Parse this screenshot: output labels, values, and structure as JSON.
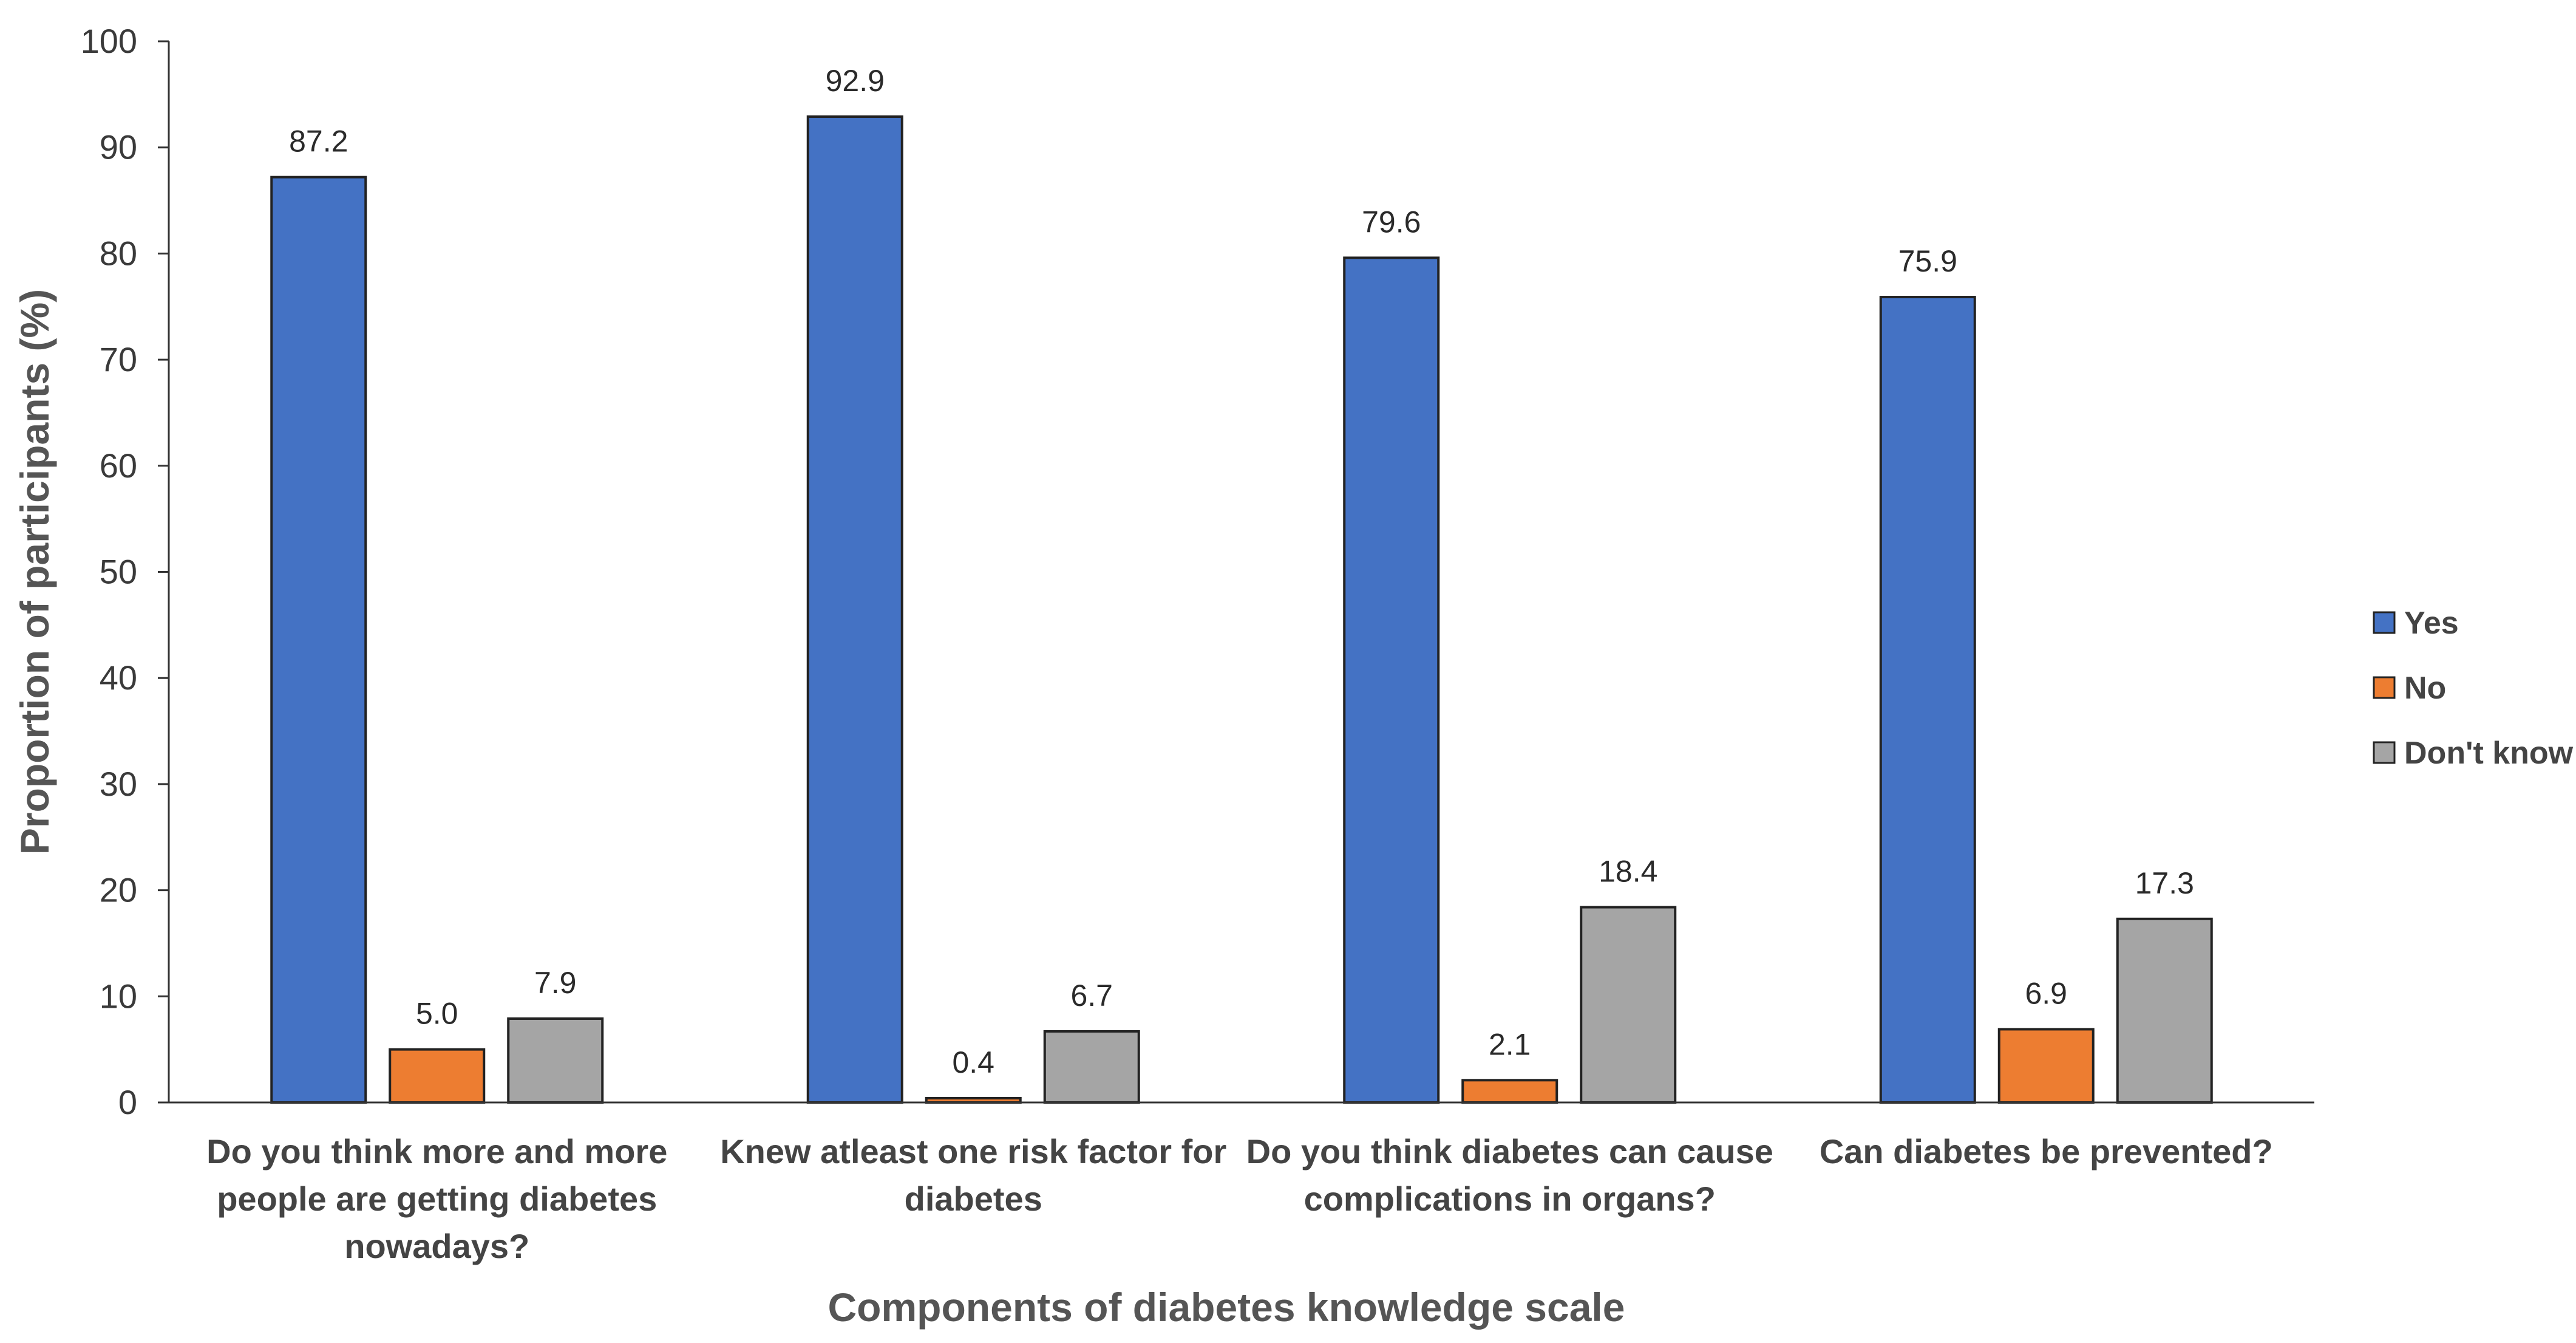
{
  "chart_data": {
    "type": "bar",
    "title": "",
    "xlabel": "Components of diabetes knowledge scale",
    "ylabel": "Proportion of participants (%)",
    "ylim": [
      0,
      100
    ],
    "yticks": [
      0,
      10,
      20,
      30,
      40,
      50,
      60,
      70,
      80,
      90,
      100
    ],
    "grid": false,
    "legend_position": "right",
    "categories": [
      [
        "Do you think more and more",
        "people are getting diabetes",
        "nowadays?"
      ],
      [
        "Knew atleast one risk factor for",
        "diabetes"
      ],
      [
        "Do you think diabetes can cause",
        "complications in organs?"
      ],
      [
        "Can diabetes be prevented?"
      ]
    ],
    "series": [
      {
        "name": "Yes",
        "color": "#4472C4",
        "values": [
          87.2,
          92.9,
          79.6,
          75.9
        ],
        "labels": [
          "87.2",
          "92.9",
          "79.6",
          "75.9"
        ]
      },
      {
        "name": "No",
        "color": "#ED7D31",
        "values": [
          5.0,
          0.4,
          2.1,
          6.9
        ],
        "labels": [
          "5.0",
          "0.4",
          "2.1",
          "6.9"
        ]
      },
      {
        "name": "Don't know",
        "color": "#A5A5A5",
        "values": [
          7.9,
          6.7,
          18.4,
          17.3
        ],
        "labels": [
          "7.9",
          "6.7",
          "18.4",
          "17.3"
        ]
      }
    ]
  }
}
